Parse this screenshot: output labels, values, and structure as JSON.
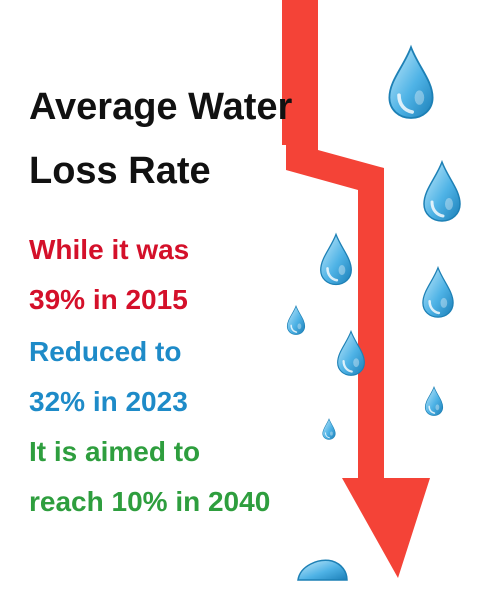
{
  "title": {
    "line1": "Average Water",
    "line2": "Loss Rate"
  },
  "statements": [
    {
      "line1": "While it was",
      "line2": "39% in 2015",
      "color": "#d4102a"
    },
    {
      "line1": "Reduced to",
      "line2": "32% in 2023",
      "color": "#1e8bc8"
    },
    {
      "line1": "It is aimed to",
      "line2": "reach 10% in 2040",
      "color": "#2e9e3e"
    }
  ],
  "arrow_color": "#f44337",
  "drop_color": "#4fb3e6",
  "icons": [
    "down-arrow-icon",
    "water-drop-icon"
  ]
}
